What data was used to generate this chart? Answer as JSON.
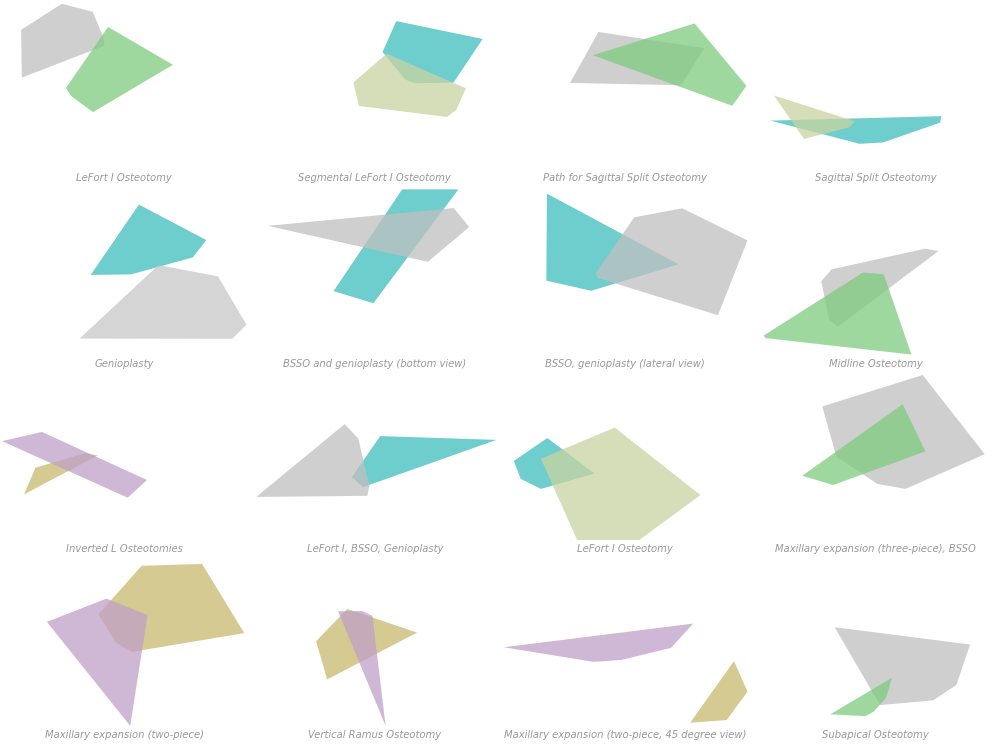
{
  "grid_rows": 4,
  "grid_cols": 4,
  "figure_width": 10.0,
  "figure_height": 7.5,
  "dpi": 100,
  "background_color": "#ffffff",
  "captions": [
    "LeFort I Osteotomy",
    "Segmental LeFort I Osteotomy",
    "Path for Sagittal Split Osteotomy",
    "Sagittal Split Osteotomy",
    "Genioplasty",
    "BSSO and genioplasty (bottom view)",
    "BSSO, genioplasty (lateral view)",
    "Midline Osteotomy",
    "Inverted L Osteotomies",
    "LeFort I, BSSO, Genioplasty",
    "LeFort I Osteotomy",
    "Maxillary expansion (three-piece), BSSO",
    "Maxillary expansion (two-piece)",
    "Vertical Ramus Osteotomy",
    "Maxillary expansion (two-piece, 45 degree view)",
    "Subapical Osteotomy"
  ],
  "cell_colors": [
    "#3dbdbd",
    "#b8b8b8",
    "#3dbdbd",
    "#b8b8b8",
    "#d0d0d0",
    "#c8b96e",
    "#c8b96e",
    "#3dbdbd",
    "#7bc87b",
    "#c8b96e",
    "#b8b8b8",
    "#3dbdbd",
    "#7bc87b",
    "#7bc87b",
    "#7bc87b",
    "#3dbdbd"
  ],
  "caption_color": "#999999",
  "caption_fontsize": 7.2,
  "caption_fontstyle": "italic",
  "caption_ha": "center"
}
